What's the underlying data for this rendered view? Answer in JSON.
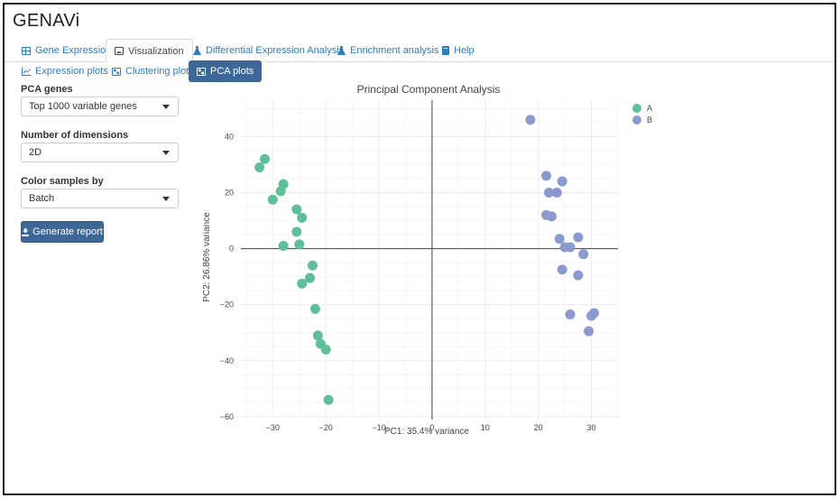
{
  "app": {
    "title": "GENAVi"
  },
  "tabs": [
    {
      "label": "Gene Expression",
      "icon": "table-icon"
    },
    {
      "label": "Visualization",
      "icon": "image-icon",
      "active": true
    },
    {
      "label": "Differential Expression Analysis",
      "icon": "flask-icon"
    },
    {
      "label": "Enrichment analysis",
      "icon": "flask-icon"
    },
    {
      "label": "Help",
      "icon": "book-icon"
    }
  ],
  "subtabs": [
    {
      "label": "Expression plots",
      "icon": "line-chart-icon"
    },
    {
      "label": "Clustering plots",
      "icon": "cluster-icon"
    },
    {
      "label": "PCA plots",
      "icon": "cluster-icon",
      "active": true
    }
  ],
  "sidebar": {
    "pca_genes": {
      "label": "PCA genes",
      "value": "Top 1000 variable genes"
    },
    "dimensions": {
      "label": "Number of dimensions",
      "value": "2D"
    },
    "color_by": {
      "label": "Color samples by",
      "value": "Batch"
    },
    "generate_button": "Generate report"
  },
  "colors": {
    "accent": "#3d6796",
    "link": "#2f7bbf",
    "series_a": "#5fbf98",
    "series_b": "#8b9acd"
  },
  "chart_data": {
    "type": "scatter",
    "title": "Principal Component Analysis",
    "xlabel": "PC1: 35.4% variance",
    "ylabel": "PC2: 26.86% variance",
    "xlim": [
      -36,
      35
    ],
    "ylim": [
      -61,
      53
    ],
    "xticks": [
      -30,
      -20,
      -10,
      0,
      10,
      20,
      30
    ],
    "yticks": [
      -60,
      -40,
      -20,
      0,
      20,
      40
    ],
    "grid": true,
    "legend": "top-right",
    "series": [
      {
        "name": "A",
        "color": "#5fbf98",
        "points": [
          [
            -31.5,
            32
          ],
          [
            -32.5,
            29
          ],
          [
            -28,
            23
          ],
          [
            -28.5,
            20.5
          ],
          [
            -30,
            17.5
          ],
          [
            -25.5,
            14
          ],
          [
            -24.5,
            11
          ],
          [
            -25.5,
            6
          ],
          [
            -25,
            1.5
          ],
          [
            -28,
            1
          ],
          [
            -22.5,
            -6
          ],
          [
            -23,
            -10.5
          ],
          [
            -24.5,
            -12.5
          ],
          [
            -22,
            -21.5
          ],
          [
            -21.5,
            -31
          ],
          [
            -21,
            -34
          ],
          [
            -20,
            -36
          ],
          [
            -19.5,
            -54
          ]
        ]
      },
      {
        "name": "B",
        "color": "#8b9acd",
        "points": [
          [
            18.5,
            46
          ],
          [
            21.5,
            26
          ],
          [
            24.5,
            24
          ],
          [
            22,
            20
          ],
          [
            23.5,
            20
          ],
          [
            21.5,
            12
          ],
          [
            22.5,
            11.5
          ],
          [
            24,
            3.5
          ],
          [
            27.5,
            4
          ],
          [
            25,
            0.5
          ],
          [
            26,
            0.5
          ],
          [
            28.5,
            -2
          ],
          [
            24.5,
            -7.5
          ],
          [
            27.5,
            -9.5
          ],
          [
            26,
            -23.5
          ],
          [
            30.5,
            -23
          ],
          [
            30,
            -24
          ],
          [
            29.5,
            -29.5
          ]
        ]
      }
    ]
  }
}
